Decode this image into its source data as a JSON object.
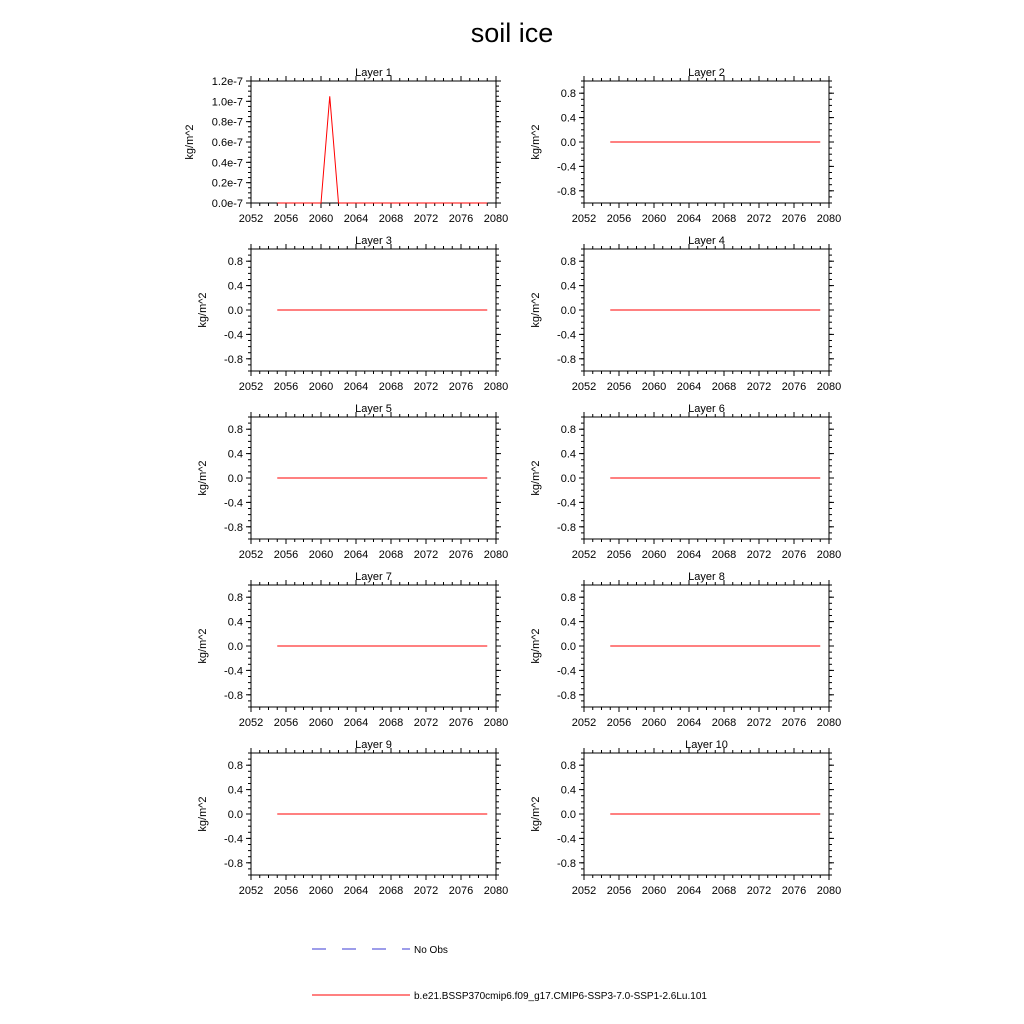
{
  "title": "soil ice",
  "colors": {
    "model": "#ff0000",
    "obs": "#3b3bd6",
    "axis": "#000000"
  },
  "legend": {
    "obs_label": "No Obs",
    "model_label": "b.e21.BSSP370cmip6.f09_g17.CMIP6-SSP3-7.0-SSP1-2.6Lu.101"
  },
  "chart_data": [
    {
      "type": "line",
      "title": "Layer 1",
      "ylabel": "kg/m^2",
      "xlim": [
        2052,
        2080
      ],
      "xticks": [
        2052,
        2056,
        2060,
        2064,
        2068,
        2072,
        2076,
        2080
      ],
      "ylim": [
        0,
        1.2e-07
      ],
      "yticks": [
        0,
        2e-08,
        4e-08,
        6e-08,
        8e-08,
        1e-07,
        1.2e-07
      ],
      "yticklabels": [
        "0.0e-7",
        "0.2e-7",
        "0.4e-7",
        "0.6e-7",
        "0.8e-7",
        "1.0e-7",
        "1.2e-7"
      ],
      "series": [
        {
          "color": "#ff0000",
          "x": [
            2055,
            2056,
            2057,
            2058,
            2059,
            2060,
            2061,
            2062,
            2063,
            2064,
            2065,
            2066,
            2067,
            2068,
            2069,
            2070,
            2071,
            2072,
            2073,
            2074,
            2075,
            2076,
            2077,
            2078,
            2079
          ],
          "y": [
            0,
            0,
            0,
            0,
            0,
            0,
            1.05e-07,
            0,
            0,
            0,
            0,
            0,
            0,
            0,
            0,
            0,
            0,
            0,
            0,
            0,
            0,
            0,
            0,
            0,
            0
          ]
        }
      ]
    },
    {
      "type": "line",
      "title": "Layer 2",
      "ylabel": "kg/m^2",
      "xlim": [
        2052,
        2080
      ],
      "xticks": [
        2052,
        2056,
        2060,
        2064,
        2068,
        2072,
        2076,
        2080
      ],
      "ylim": [
        -1,
        1
      ],
      "yticks": [
        -0.8,
        -0.4,
        0,
        0.4,
        0.8
      ],
      "yticklabels": [
        "-0.8",
        "-0.4",
        "0.0",
        "0.4",
        "0.8"
      ],
      "series": [
        {
          "color": "#ff0000",
          "x": [
            2055,
            2079
          ],
          "y": [
            0,
            0
          ]
        }
      ]
    },
    {
      "type": "line",
      "title": "Layer 3",
      "ylabel": "kg/m^2",
      "xlim": [
        2052,
        2080
      ],
      "xticks": [
        2052,
        2056,
        2060,
        2064,
        2068,
        2072,
        2076,
        2080
      ],
      "ylim": [
        -1,
        1
      ],
      "yticks": [
        -0.8,
        -0.4,
        0,
        0.4,
        0.8
      ],
      "yticklabels": [
        "-0.8",
        "-0.4",
        "0.0",
        "0.4",
        "0.8"
      ],
      "series": [
        {
          "color": "#ff0000",
          "x": [
            2055,
            2079
          ],
          "y": [
            0,
            0
          ]
        }
      ]
    },
    {
      "type": "line",
      "title": "Layer 4",
      "ylabel": "kg/m^2",
      "xlim": [
        2052,
        2080
      ],
      "xticks": [
        2052,
        2056,
        2060,
        2064,
        2068,
        2072,
        2076,
        2080
      ],
      "ylim": [
        -1,
        1
      ],
      "yticks": [
        -0.8,
        -0.4,
        0,
        0.4,
        0.8
      ],
      "yticklabels": [
        "-0.8",
        "-0.4",
        "0.0",
        "0.4",
        "0.8"
      ],
      "series": [
        {
          "color": "#ff0000",
          "x": [
            2055,
            2079
          ],
          "y": [
            0,
            0
          ]
        }
      ]
    },
    {
      "type": "line",
      "title": "Layer 5",
      "ylabel": "kg/m^2",
      "xlim": [
        2052,
        2080
      ],
      "xticks": [
        2052,
        2056,
        2060,
        2064,
        2068,
        2072,
        2076,
        2080
      ],
      "ylim": [
        -1,
        1
      ],
      "yticks": [
        -0.8,
        -0.4,
        0,
        0.4,
        0.8
      ],
      "yticklabels": [
        "-0.8",
        "-0.4",
        "0.0",
        "0.4",
        "0.8"
      ],
      "series": [
        {
          "color": "#ff0000",
          "x": [
            2055,
            2079
          ],
          "y": [
            0,
            0
          ]
        }
      ]
    },
    {
      "type": "line",
      "title": "Layer 6",
      "ylabel": "kg/m^2",
      "xlim": [
        2052,
        2080
      ],
      "xticks": [
        2052,
        2056,
        2060,
        2064,
        2068,
        2072,
        2076,
        2080
      ],
      "ylim": [
        -1,
        1
      ],
      "yticks": [
        -0.8,
        -0.4,
        0,
        0.4,
        0.8
      ],
      "yticklabels": [
        "-0.8",
        "-0.4",
        "0.0",
        "0.4",
        "0.8"
      ],
      "series": [
        {
          "color": "#ff0000",
          "x": [
            2055,
            2079
          ],
          "y": [
            0,
            0
          ]
        }
      ]
    },
    {
      "type": "line",
      "title": "Layer 7",
      "ylabel": "kg/m^2",
      "xlim": [
        2052,
        2080
      ],
      "xticks": [
        2052,
        2056,
        2060,
        2064,
        2068,
        2072,
        2076,
        2080
      ],
      "ylim": [
        -1,
        1
      ],
      "yticks": [
        -0.8,
        -0.4,
        0,
        0.4,
        0.8
      ],
      "yticklabels": [
        "-0.8",
        "-0.4",
        "0.0",
        "0.4",
        "0.8"
      ],
      "series": [
        {
          "color": "#ff0000",
          "x": [
            2055,
            2079
          ],
          "y": [
            0,
            0
          ]
        }
      ]
    },
    {
      "type": "line",
      "title": "Layer 8",
      "ylabel": "kg/m^2",
      "xlim": [
        2052,
        2080
      ],
      "xticks": [
        2052,
        2056,
        2060,
        2064,
        2068,
        2072,
        2076,
        2080
      ],
      "ylim": [
        -1,
        1
      ],
      "yticks": [
        -0.8,
        -0.4,
        0,
        0.4,
        0.8
      ],
      "yticklabels": [
        "-0.8",
        "-0.4",
        "0.0",
        "0.4",
        "0.8"
      ],
      "series": [
        {
          "color": "#ff0000",
          "x": [
            2055,
            2079
          ],
          "y": [
            0,
            0
          ]
        }
      ]
    },
    {
      "type": "line",
      "title": "Layer 9",
      "ylabel": "kg/m^2",
      "xlim": [
        2052,
        2080
      ],
      "xticks": [
        2052,
        2056,
        2060,
        2064,
        2068,
        2072,
        2076,
        2080
      ],
      "ylim": [
        -1,
        1
      ],
      "yticks": [
        -0.8,
        -0.4,
        0,
        0.4,
        0.8
      ],
      "yticklabels": [
        "-0.8",
        "-0.4",
        "0.0",
        "0.4",
        "0.8"
      ],
      "series": [
        {
          "color": "#ff0000",
          "x": [
            2055,
            2079
          ],
          "y": [
            0,
            0
          ]
        }
      ]
    },
    {
      "type": "line",
      "title": "Layer 10",
      "ylabel": "kg/m^2",
      "xlim": [
        2052,
        2080
      ],
      "xticks": [
        2052,
        2056,
        2060,
        2064,
        2068,
        2072,
        2076,
        2080
      ],
      "ylim": [
        -1,
        1
      ],
      "yticks": [
        -0.8,
        -0.4,
        0,
        0.4,
        0.8
      ],
      "yticklabels": [
        "-0.8",
        "-0.4",
        "0.0",
        "0.4",
        "0.8"
      ],
      "series": [
        {
          "color": "#ff0000",
          "x": [
            2055,
            2079
          ],
          "y": [
            0,
            0
          ]
        }
      ]
    }
  ]
}
